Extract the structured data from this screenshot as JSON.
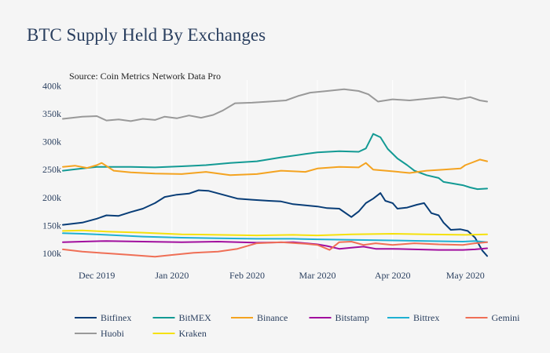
{
  "chart_data": {
    "type": "line",
    "title": "BTC Supply Held By Exchanges",
    "source": "Source: Coin Metrics Network Data Pro",
    "x_ticks": [
      {
        "date": "2019-12-01",
        "label": "Dec 2019"
      },
      {
        "date": "2020-01-01",
        "label": "Jan 2020"
      },
      {
        "date": "2020-02-01",
        "label": "Feb 2020"
      },
      {
        "date": "2020-03-01",
        "label": "Mar 2020"
      },
      {
        "date": "2020-04-01",
        "label": "Apr 2020"
      },
      {
        "date": "2020-05-01",
        "label": "May 2020"
      }
    ],
    "y_ticks": [
      {
        "value": 100000,
        "label": "100k"
      },
      {
        "value": 150000,
        "label": "150k"
      },
      {
        "value": 200000,
        "label": "200k"
      },
      {
        "value": 250000,
        "label": "250k"
      },
      {
        "value": 300000,
        "label": "300k"
      },
      {
        "value": 350000,
        "label": "350k"
      },
      {
        "value": 400000,
        "label": "400k"
      }
    ],
    "xlim": [
      "2019-11-17",
      "2020-05-10"
    ],
    "ylim": [
      90000,
      405000
    ],
    "grid": "vertical",
    "legend_position": "bottom",
    "series": [
      {
        "name": "Bitfinex",
        "color": "#083d77",
        "points": [
          [
            "2019-11-17",
            151000
          ],
          [
            "2019-11-25",
            155000
          ],
          [
            "2019-12-01",
            162000
          ],
          [
            "2019-12-05",
            168000
          ],
          [
            "2019-12-10",
            167000
          ],
          [
            "2019-12-15",
            174000
          ],
          [
            "2019-12-20",
            180000
          ],
          [
            "2019-12-25",
            190000
          ],
          [
            "2019-12-29",
            201000
          ],
          [
            "2020-01-03",
            205000
          ],
          [
            "2020-01-08",
            207000
          ],
          [
            "2020-01-12",
            213000
          ],
          [
            "2020-01-16",
            212000
          ],
          [
            "2020-01-22",
            205000
          ],
          [
            "2020-01-28",
            198000
          ],
          [
            "2020-02-03",
            196000
          ],
          [
            "2020-02-10",
            194000
          ],
          [
            "2020-02-15",
            193000
          ],
          [
            "2020-02-20",
            188000
          ],
          [
            "2020-02-25",
            186000
          ],
          [
            "2020-03-01",
            184000
          ],
          [
            "2020-03-05",
            181000
          ],
          [
            "2020-03-10",
            180000
          ],
          [
            "2020-03-15",
            165000
          ],
          [
            "2020-03-18",
            175000
          ],
          [
            "2020-03-21",
            190000
          ],
          [
            "2020-03-24",
            198000
          ],
          [
            "2020-03-27",
            208000
          ],
          [
            "2020-03-29",
            194000
          ],
          [
            "2020-04-01",
            190000
          ],
          [
            "2020-04-03",
            180000
          ],
          [
            "2020-04-07",
            182000
          ],
          [
            "2020-04-11",
            187000
          ],
          [
            "2020-04-14",
            190000
          ],
          [
            "2020-04-17",
            172000
          ],
          [
            "2020-04-20",
            168000
          ],
          [
            "2020-04-22",
            155000
          ],
          [
            "2020-04-25",
            142000
          ],
          [
            "2020-04-29",
            143000
          ],
          [
            "2020-05-02",
            140000
          ],
          [
            "2020-05-05",
            128000
          ],
          [
            "2020-05-08",
            105000
          ],
          [
            "2020-05-10",
            95000
          ]
        ]
      },
      {
        "name": "BitMEX",
        "color": "#139a94",
        "points": [
          [
            "2019-11-17",
            248000
          ],
          [
            "2019-11-25",
            252000
          ],
          [
            "2019-12-01",
            255000
          ],
          [
            "2019-12-15",
            255000
          ],
          [
            "2019-12-25",
            254000
          ],
          [
            "2020-01-05",
            256000
          ],
          [
            "2020-01-15",
            258000
          ],
          [
            "2020-01-25",
            262000
          ],
          [
            "2020-02-05",
            265000
          ],
          [
            "2020-02-15",
            272000
          ],
          [
            "2020-02-25",
            278000
          ],
          [
            "2020-03-01",
            281000
          ],
          [
            "2020-03-10",
            283000
          ],
          [
            "2020-03-18",
            282000
          ],
          [
            "2020-03-21",
            288000
          ],
          [
            "2020-03-24",
            314000
          ],
          [
            "2020-03-27",
            308000
          ],
          [
            "2020-03-30",
            287000
          ],
          [
            "2020-04-03",
            270000
          ],
          [
            "2020-04-07",
            258000
          ],
          [
            "2020-04-10",
            248000
          ],
          [
            "2020-04-15",
            240000
          ],
          [
            "2020-04-20",
            235000
          ],
          [
            "2020-04-22",
            228000
          ],
          [
            "2020-04-26",
            225000
          ],
          [
            "2020-04-30",
            222000
          ],
          [
            "2020-05-03",
            218000
          ],
          [
            "2020-05-06",
            215000
          ],
          [
            "2020-05-10",
            216000
          ]
        ]
      },
      {
        "name": "Binance",
        "color": "#f4a320",
        "points": [
          [
            "2019-11-17",
            255000
          ],
          [
            "2019-11-22",
            257000
          ],
          [
            "2019-11-27",
            253000
          ],
          [
            "2019-12-01",
            258000
          ],
          [
            "2019-12-03",
            262000
          ],
          [
            "2019-12-08",
            248000
          ],
          [
            "2019-12-15",
            245000
          ],
          [
            "2019-12-25",
            243000
          ],
          [
            "2020-01-05",
            242000
          ],
          [
            "2020-01-15",
            246000
          ],
          [
            "2020-01-25",
            240000
          ],
          [
            "2020-02-05",
            242000
          ],
          [
            "2020-02-15",
            248000
          ],
          [
            "2020-02-25",
            246000
          ],
          [
            "2020-03-01",
            252000
          ],
          [
            "2020-03-10",
            255000
          ],
          [
            "2020-03-18",
            254000
          ],
          [
            "2020-03-21",
            262000
          ],
          [
            "2020-03-24",
            250000
          ],
          [
            "2020-04-01",
            247000
          ],
          [
            "2020-04-08",
            244000
          ],
          [
            "2020-04-15",
            248000
          ],
          [
            "2020-04-22",
            250000
          ],
          [
            "2020-04-29",
            252000
          ],
          [
            "2020-05-01",
            258000
          ],
          [
            "2020-05-04",
            263000
          ],
          [
            "2020-05-07",
            268000
          ],
          [
            "2020-05-10",
            265000
          ]
        ]
      },
      {
        "name": "Bitstamp",
        "color": "#a10e9e",
        "points": [
          [
            "2019-11-17",
            120000
          ],
          [
            "2019-11-25",
            121000
          ],
          [
            "2019-12-05",
            122000
          ],
          [
            "2019-12-20",
            121000
          ],
          [
            "2020-01-05",
            120000
          ],
          [
            "2020-01-20",
            121000
          ],
          [
            "2020-02-05",
            119000
          ],
          [
            "2020-02-20",
            120000
          ],
          [
            "2020-03-01",
            116000
          ],
          [
            "2020-03-05",
            113000
          ],
          [
            "2020-03-10",
            108000
          ],
          [
            "2020-03-15",
            110000
          ],
          [
            "2020-03-20",
            112000
          ],
          [
            "2020-03-25",
            108000
          ],
          [
            "2020-04-01",
            108000
          ],
          [
            "2020-04-10",
            107000
          ],
          [
            "2020-04-20",
            106000
          ],
          [
            "2020-04-30",
            106000
          ],
          [
            "2020-05-05",
            107000
          ],
          [
            "2020-05-10",
            109000
          ]
        ]
      },
      {
        "name": "Bittrex",
        "color": "#1fb0d2",
        "points": [
          [
            "2019-11-17",
            136000
          ],
          [
            "2019-11-25",
            135000
          ],
          [
            "2019-12-05",
            133000
          ],
          [
            "2019-12-20",
            130000
          ],
          [
            "2020-01-05",
            128000
          ],
          [
            "2020-01-20",
            127000
          ],
          [
            "2020-02-05",
            126000
          ],
          [
            "2020-02-20",
            126000
          ],
          [
            "2020-03-01",
            125000
          ],
          [
            "2020-03-15",
            124000
          ],
          [
            "2020-04-01",
            123000
          ],
          [
            "2020-04-15",
            122000
          ],
          [
            "2020-04-30",
            121000
          ],
          [
            "2020-05-05",
            122000
          ],
          [
            "2020-05-10",
            120000
          ]
        ]
      },
      {
        "name": "Gemini",
        "color": "#ef6f56",
        "points": [
          [
            "2019-11-17",
            107000
          ],
          [
            "2019-11-25",
            103000
          ],
          [
            "2019-12-05",
            100000
          ],
          [
            "2019-12-15",
            97000
          ],
          [
            "2019-12-25",
            94000
          ],
          [
            "2020-01-01",
            97000
          ],
          [
            "2020-01-10",
            101000
          ],
          [
            "2020-01-20",
            103000
          ],
          [
            "2020-01-28",
            108000
          ],
          [
            "2020-02-05",
            118000
          ],
          [
            "2020-02-15",
            120000
          ],
          [
            "2020-02-25",
            117000
          ],
          [
            "2020-03-01",
            115000
          ],
          [
            "2020-03-06",
            106000
          ],
          [
            "2020-03-10",
            120000
          ],
          [
            "2020-03-15",
            121000
          ],
          [
            "2020-03-20",
            115000
          ],
          [
            "2020-03-25",
            118000
          ],
          [
            "2020-04-01",
            115000
          ],
          [
            "2020-04-10",
            118000
          ],
          [
            "2020-04-20",
            116000
          ],
          [
            "2020-04-30",
            115000
          ],
          [
            "2020-05-05",
            118000
          ],
          [
            "2020-05-10",
            120000
          ]
        ]
      },
      {
        "name": "Huobi",
        "color": "#999999",
        "points": [
          [
            "2019-11-17",
            341000
          ],
          [
            "2019-11-25",
            345000
          ],
          [
            "2019-12-01",
            346000
          ],
          [
            "2019-12-05",
            338000
          ],
          [
            "2019-12-10",
            340000
          ],
          [
            "2019-12-15",
            337000
          ],
          [
            "2019-12-20",
            341000
          ],
          [
            "2019-12-25",
            339000
          ],
          [
            "2019-12-29",
            345000
          ],
          [
            "2020-01-03",
            342000
          ],
          [
            "2020-01-08",
            347000
          ],
          [
            "2020-01-13",
            343000
          ],
          [
            "2020-01-18",
            348000
          ],
          [
            "2020-01-22",
            356000
          ],
          [
            "2020-01-27",
            369000
          ],
          [
            "2020-02-03",
            370000
          ],
          [
            "2020-02-10",
            372000
          ],
          [
            "2020-02-17",
            374000
          ],
          [
            "2020-02-22",
            382000
          ],
          [
            "2020-02-27",
            388000
          ],
          [
            "2020-03-05",
            391000
          ],
          [
            "2020-03-12",
            394000
          ],
          [
            "2020-03-18",
            391000
          ],
          [
            "2020-03-22",
            385000
          ],
          [
            "2020-03-26",
            372000
          ],
          [
            "2020-04-01",
            376000
          ],
          [
            "2020-04-08",
            374000
          ],
          [
            "2020-04-15",
            377000
          ],
          [
            "2020-04-22",
            380000
          ],
          [
            "2020-04-28",
            376000
          ],
          [
            "2020-05-03",
            380000
          ],
          [
            "2020-05-07",
            374000
          ],
          [
            "2020-05-10",
            372000
          ]
        ]
      },
      {
        "name": "Kraken",
        "color": "#f5e10c",
        "points": [
          [
            "2019-11-17",
            140000
          ],
          [
            "2019-11-25",
            141000
          ],
          [
            "2019-12-05",
            139000
          ],
          [
            "2019-12-20",
            137000
          ],
          [
            "2020-01-05",
            134000
          ],
          [
            "2020-01-20",
            133000
          ],
          [
            "2020-02-05",
            132000
          ],
          [
            "2020-02-20",
            133000
          ],
          [
            "2020-03-01",
            132000
          ],
          [
            "2020-03-15",
            134000
          ],
          [
            "2020-04-01",
            135000
          ],
          [
            "2020-04-15",
            134000
          ],
          [
            "2020-05-01",
            133000
          ],
          [
            "2020-05-10",
            134000
          ]
        ]
      }
    ]
  }
}
